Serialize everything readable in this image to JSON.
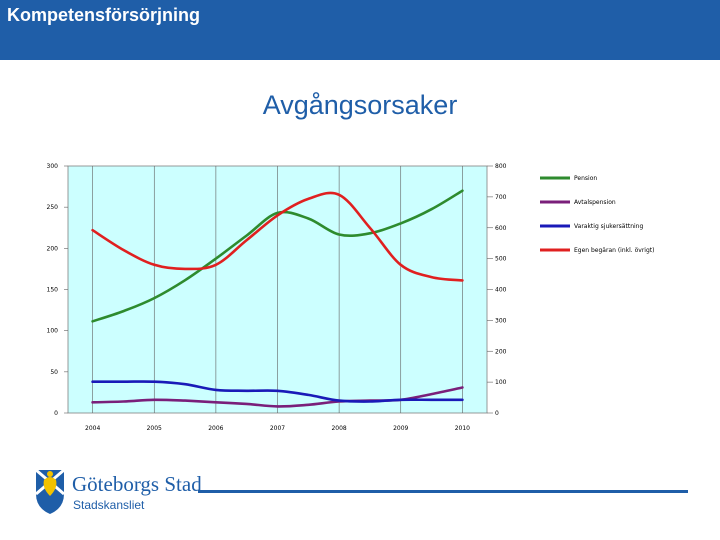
{
  "header": {
    "title": "Kompetensförsörjning"
  },
  "slide": {
    "title": "Avgångsorsaker"
  },
  "logo": {
    "name": "Göteborgs Stad",
    "subtitle": "Stadskansliet"
  },
  "colors": {
    "header_bg": "#1f5ea8",
    "plot_bg": "#ccffff",
    "pension": "#2e8b2e",
    "avtalspension": "#7a1f7a",
    "sjukersattning": "#1a1ab8",
    "egen_begaran": "#e02020"
  },
  "chart_data": {
    "type": "line",
    "title": "",
    "xlabel": "",
    "ylabel": "",
    "categories": [
      "2004",
      "2005",
      "2006",
      "2007",
      "2008",
      "2009",
      "2010"
    ],
    "ylim_left": [
      0,
      300
    ],
    "yticks_left": [
      0,
      50,
      100,
      150,
      200,
      250,
      300
    ],
    "ylim_right": [
      0,
      800
    ],
    "yticks_right": [
      0,
      100,
      200,
      300,
      400,
      500,
      600,
      700,
      800
    ],
    "grid": "vertical",
    "legend_position": "right",
    "series": [
      {
        "name": "Pension",
        "axis": "right",
        "color": "#2e8b2e",
        "x": [
          2004,
          2004.5,
          2005,
          2005.5,
          2006,
          2006.5,
          2007,
          2007.5,
          2008,
          2008.5,
          2009,
          2009.5,
          2010
        ],
        "values": [
          297,
          330,
          372,
          430,
          500,
          575,
          648,
          630,
          578,
          582,
          614,
          660,
          720
        ]
      },
      {
        "name": "Avtalspension",
        "axis": "left",
        "color": "#7a1f7a",
        "x": [
          2004,
          2004.5,
          2005,
          2005.5,
          2006,
          2006.5,
          2007,
          2007.5,
          2008,
          2008.5,
          2009,
          2009.5,
          2010
        ],
        "values": [
          13,
          14,
          16,
          15,
          13,
          11,
          8,
          10,
          14,
          15,
          16,
          23,
          31
        ]
      },
      {
        "name": "Varaktig sjukersättning",
        "axis": "left",
        "color": "#1a1ab8",
        "x": [
          2004,
          2004.5,
          2005,
          2005.5,
          2006,
          2006.5,
          2007,
          2007.5,
          2008,
          2008.5,
          2009,
          2009.5,
          2010
        ],
        "values": [
          38,
          38,
          38,
          35,
          28,
          27,
          27,
          22,
          15,
          14,
          16,
          16,
          16
        ]
      },
      {
        "name": "Egen begäran (inkl. övrigt)",
        "axis": "left",
        "color": "#e02020",
        "x": [
          2004,
          2004.5,
          2005,
          2005.5,
          2006,
          2006.5,
          2007,
          2007.5,
          2008,
          2008.5,
          2009,
          2009.5,
          2010
        ],
        "values": [
          222,
          198,
          180,
          175,
          180,
          210,
          240,
          260,
          265,
          225,
          180,
          165,
          161
        ]
      }
    ]
  }
}
